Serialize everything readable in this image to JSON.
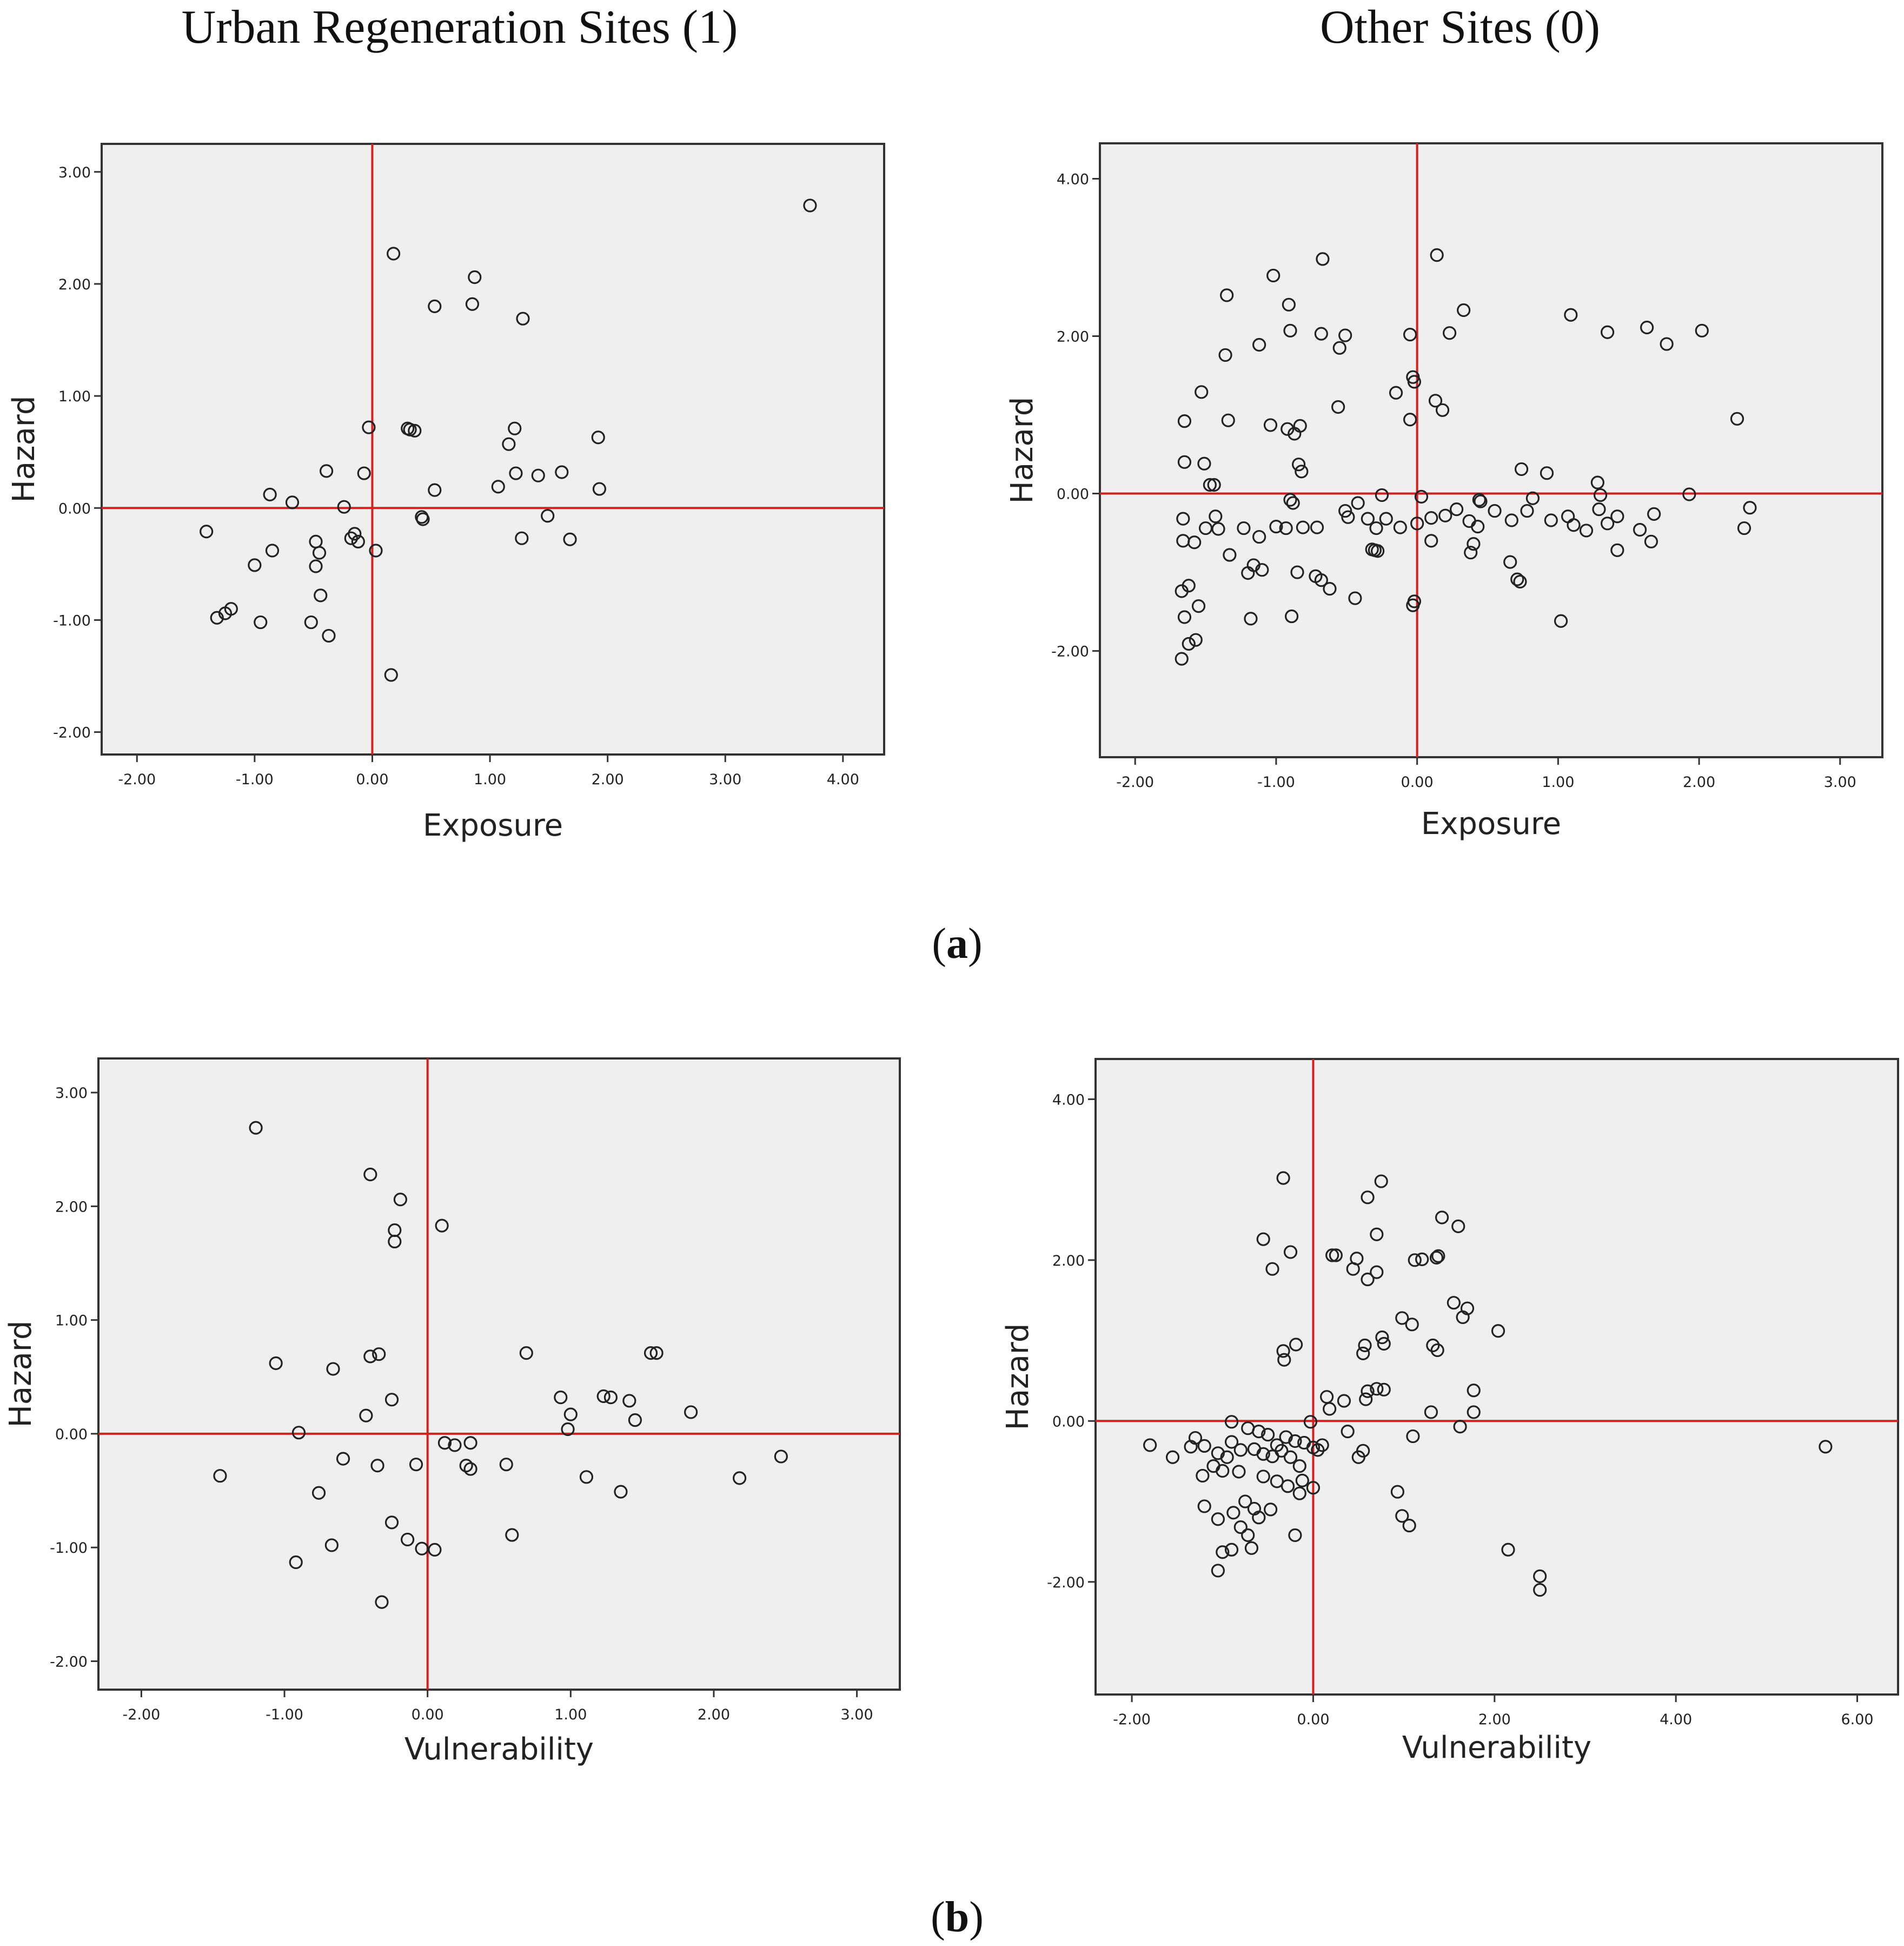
{
  "column_titles": [
    "Urban Regeneration Sites (1)",
    "Other Sites (0)"
  ],
  "panel_labels": [
    "a",
    "b"
  ],
  "colors": {
    "reference_line": "#d61f1f",
    "plot_background": "#efefef",
    "marker": "#222222"
  },
  "chart_data": [
    {
      "id": "a-left",
      "type": "scatter",
      "xlabel": "Exposure",
      "ylabel": "Hazard",
      "xlim": [
        -2.3,
        4.35
      ],
      "ylim": [
        -2.2,
        3.25
      ],
      "xticks": [
        -2,
        -1,
        0,
        1,
        2,
        3,
        4
      ],
      "yticks": [
        -2,
        -1,
        0,
        1,
        2,
        3
      ],
      "reference_lines": {
        "x": 0,
        "y": 0
      },
      "points": [
        [
          3.72,
          2.7
        ],
        [
          0.18,
          2.27
        ],
        [
          0.87,
          2.06
        ],
        [
          0.53,
          1.8
        ],
        [
          0.85,
          1.82
        ],
        [
          1.28,
          1.69
        ],
        [
          -0.03,
          0.72
        ],
        [
          0.3,
          0.71
        ],
        [
          0.32,
          0.7
        ],
        [
          0.36,
          0.69
        ],
        [
          1.21,
          0.71
        ],
        [
          1.16,
          0.57
        ],
        [
          1.92,
          0.63
        ],
        [
          -0.39,
          0.33
        ],
        [
          -0.07,
          0.31
        ],
        [
          1.22,
          0.31
        ],
        [
          1.41,
          0.29
        ],
        [
          1.61,
          0.32
        ],
        [
          0.53,
          0.16
        ],
        [
          1.07,
          0.19
        ],
        [
          1.93,
          0.17
        ],
        [
          -0.87,
          0.12
        ],
        [
          -0.68,
          0.05
        ],
        [
          -0.24,
          0.01
        ],
        [
          0.42,
          -0.08
        ],
        [
          0.43,
          -0.1
        ],
        [
          1.49,
          -0.07
        ],
        [
          -1.41,
          -0.21
        ],
        [
          -0.15,
          -0.23
        ],
        [
          -0.18,
          -0.27
        ],
        [
          -0.12,
          -0.3
        ],
        [
          0.03,
          -0.38
        ],
        [
          1.27,
          -0.27
        ],
        [
          1.68,
          -0.28
        ],
        [
          -0.85,
          -0.38
        ],
        [
          -0.48,
          -0.3
        ],
        [
          -0.45,
          -0.4
        ],
        [
          -1.0,
          -0.51
        ],
        [
          -0.48,
          -0.52
        ],
        [
          -0.44,
          -0.78
        ],
        [
          -1.2,
          -0.9
        ],
        [
          -1.25,
          -0.94
        ],
        [
          -1.32,
          -0.98
        ],
        [
          -0.95,
          -1.02
        ],
        [
          -0.52,
          -1.02
        ],
        [
          -0.37,
          -1.14
        ],
        [
          0.16,
          -1.49
        ]
      ]
    },
    {
      "id": "a-right",
      "type": "scatter",
      "xlabel": "Exposure",
      "ylabel": "Hazard",
      "xlim": [
        -2.25,
        3.3
      ],
      "ylim": [
        -3.35,
        4.45
      ],
      "xticks": [
        -2,
        -1,
        0,
        1,
        2,
        3
      ],
      "yticks": [
        -2,
        0,
        2,
        4
      ],
      "reference_lines": {
        "x": 0,
        "y": 0
      },
      "points": [
        [
          0.14,
          3.03
        ],
        [
          -0.67,
          2.98
        ],
        [
          -1.02,
          2.77
        ],
        [
          -1.35,
          2.52
        ],
        [
          -0.91,
          2.4
        ],
        [
          0.33,
          2.33
        ],
        [
          1.09,
          2.27
        ],
        [
          1.63,
          2.11
        ],
        [
          2.02,
          2.07
        ],
        [
          1.35,
          2.05
        ],
        [
          -0.9,
          2.07
        ],
        [
          -0.68,
          2.03
        ],
        [
          -0.51,
          2.01
        ],
        [
          -0.05,
          2.02
        ],
        [
          0.23,
          2.04
        ],
        [
          1.77,
          1.9
        ],
        [
          -1.12,
          1.89
        ],
        [
          -0.55,
          1.85
        ],
        [
          -1.36,
          1.76
        ],
        [
          -0.03,
          1.48
        ],
        [
          -0.02,
          1.42
        ],
        [
          -1.53,
          1.29
        ],
        [
          -0.15,
          1.28
        ],
        [
          0.13,
          1.18
        ],
        [
          -0.56,
          1.1
        ],
        [
          0.18,
          1.06
        ],
        [
          -1.34,
          0.93
        ],
        [
          -1.65,
          0.92
        ],
        [
          -0.05,
          0.94
        ],
        [
          2.27,
          0.95
        ],
        [
          -1.04,
          0.87
        ],
        [
          -0.92,
          0.82
        ],
        [
          -0.83,
          0.86
        ],
        [
          -0.87,
          0.76
        ],
        [
          -1.65,
          0.4
        ],
        [
          -1.51,
          0.38
        ],
        [
          -0.84,
          0.37
        ],
        [
          -0.82,
          0.28
        ],
        [
          0.74,
          0.31
        ],
        [
          0.92,
          0.26
        ],
        [
          -1.47,
          0.11
        ],
        [
          -1.44,
          0.11
        ],
        [
          1.28,
          0.14
        ],
        [
          -0.9,
          -0.08
        ],
        [
          -0.88,
          -0.12
        ],
        [
          -0.25,
          -0.02
        ],
        [
          0.03,
          -0.04
        ],
        [
          0.44,
          -0.08
        ],
        [
          0.45,
          -0.1
        ],
        [
          0.82,
          -0.06
        ],
        [
          1.3,
          -0.02
        ],
        [
          1.93,
          -0.01
        ],
        [
          -1.43,
          -0.29
        ],
        [
          -1.41,
          -0.45
        ],
        [
          -1.23,
          -0.44
        ],
        [
          -1.12,
          -0.55
        ],
        [
          -1.0,
          -0.42
        ],
        [
          -0.93,
          -0.44
        ],
        [
          -0.81,
          -0.43
        ],
        [
          -0.71,
          -0.43
        ],
        [
          -0.51,
          -0.22
        ],
        [
          -0.49,
          -0.3
        ],
        [
          -0.42,
          -0.12
        ],
        [
          -0.35,
          -0.32
        ],
        [
          -0.29,
          -0.44
        ],
        [
          -0.22,
          -0.32
        ],
        [
          -0.12,
          -0.43
        ],
        [
          0.0,
          -0.38
        ],
        [
          0.1,
          -0.31
        ],
        [
          0.2,
          -0.28
        ],
        [
          0.28,
          -0.2
        ],
        [
          0.37,
          -0.35
        ],
        [
          0.43,
          -0.42
        ],
        [
          0.55,
          -0.22
        ],
        [
          0.67,
          -0.34
        ],
        [
          0.78,
          -0.22
        ],
        [
          0.95,
          -0.34
        ],
        [
          1.07,
          -0.29
        ],
        [
          1.11,
          -0.4
        ],
        [
          1.2,
          -0.47
        ],
        [
          1.29,
          -0.2
        ],
        [
          1.35,
          -0.38
        ],
        [
          1.42,
          -0.29
        ],
        [
          1.58,
          -0.46
        ],
        [
          1.68,
          -0.26
        ],
        [
          2.32,
          -0.44
        ],
        [
          2.36,
          -0.18
        ],
        [
          -1.66,
          -0.32
        ],
        [
          -1.66,
          -0.6
        ],
        [
          -1.58,
          -0.62
        ],
        [
          -1.5,
          -0.44
        ],
        [
          -0.85,
          -1.0
        ],
        [
          -1.16,
          -0.91
        ],
        [
          -1.2,
          -1.01
        ],
        [
          -1.1,
          -0.97
        ],
        [
          -1.33,
          -0.78
        ],
        [
          -0.32,
          -0.71
        ],
        [
          -0.3,
          -0.72
        ],
        [
          -0.28,
          -0.73
        ],
        [
          0.1,
          -0.6
        ],
        [
          0.38,
          -0.75
        ],
        [
          0.4,
          -0.64
        ],
        [
          1.42,
          -0.72
        ],
        [
          1.66,
          -0.61
        ],
        [
          -0.72,
          -1.05
        ],
        [
          -0.68,
          -1.1
        ],
        [
          -0.62,
          -1.21
        ],
        [
          -0.44,
          -1.33
        ],
        [
          -0.02,
          -1.37
        ],
        [
          -0.03,
          -1.42
        ],
        [
          0.66,
          -0.87
        ],
        [
          0.71,
          -1.09
        ],
        [
          0.73,
          -1.12
        ],
        [
          -1.67,
          -1.24
        ],
        [
          -1.62,
          -1.17
        ],
        [
          -1.55,
          -1.43
        ],
        [
          -1.65,
          -1.57
        ],
        [
          -1.62,
          -1.91
        ],
        [
          -1.57,
          -1.86
        ],
        [
          -1.67,
          -2.1
        ],
        [
          -1.18,
          -1.59
        ],
        [
          -0.89,
          -1.56
        ],
        [
          1.02,
          -1.62
        ]
      ]
    },
    {
      "id": "b-left",
      "type": "scatter",
      "xlabel": "Vulnerability",
      "ylabel": "Hazard",
      "xlim": [
        -2.3,
        3.3
      ],
      "ylim": [
        -2.25,
        3.3
      ],
      "xticks": [
        -2,
        -1,
        0,
        1,
        2,
        3
      ],
      "yticks": [
        -2,
        -1,
        0,
        1,
        2,
        3
      ],
      "reference_lines": {
        "x": 0,
        "y": 0
      },
      "points": [
        [
          -1.2,
          2.69
        ],
        [
          -0.4,
          2.28
        ],
        [
          -0.19,
          2.06
        ],
        [
          0.1,
          1.83
        ],
        [
          -0.23,
          1.79
        ],
        [
          -0.23,
          1.69
        ],
        [
          -1.06,
          0.62
        ],
        [
          -0.66,
          0.57
        ],
        [
          -0.4,
          0.68
        ],
        [
          -0.34,
          0.7
        ],
        [
          0.69,
          0.71
        ],
        [
          1.56,
          0.71
        ],
        [
          1.6,
          0.71
        ],
        [
          -0.43,
          0.16
        ],
        [
          -0.25,
          0.3
        ],
        [
          0.93,
          0.32
        ],
        [
          1.0,
          0.17
        ],
        [
          1.23,
          0.33
        ],
        [
          1.28,
          0.32
        ],
        [
          1.41,
          0.29
        ],
        [
          1.45,
          0.12
        ],
        [
          1.84,
          0.19
        ],
        [
          0.98,
          0.04
        ],
        [
          -0.9,
          0.01
        ],
        [
          0.12,
          -0.08
        ],
        [
          0.19,
          -0.1
        ],
        [
          0.3,
          -0.08
        ],
        [
          -0.59,
          -0.22
        ],
        [
          -0.35,
          -0.28
        ],
        [
          -0.08,
          -0.27
        ],
        [
          0.27,
          -0.28
        ],
        [
          0.3,
          -0.31
        ],
        [
          0.55,
          -0.27
        ],
        [
          2.47,
          -0.2
        ],
        [
          -1.45,
          -0.37
        ],
        [
          1.11,
          -0.38
        ],
        [
          2.18,
          -0.39
        ],
        [
          -0.76,
          -0.52
        ],
        [
          1.35,
          -0.51
        ],
        [
          -0.25,
          -0.78
        ],
        [
          -0.14,
          -0.93
        ],
        [
          0.59,
          -0.89
        ],
        [
          -0.67,
          -0.98
        ],
        [
          -0.04,
          -1.01
        ],
        [
          0.05,
          -1.02
        ],
        [
          -0.92,
          -1.13
        ],
        [
          -0.32,
          -1.48
        ]
      ]
    },
    {
      "id": "b-right",
      "type": "scatter",
      "xlabel": "Vulnerability",
      "ylabel": "Hazard",
      "xlim": [
        -2.4,
        6.45
      ],
      "ylim": [
        -3.4,
        4.5
      ],
      "xticks": [
        -2,
        0,
        2,
        4,
        6
      ],
      "yticks": [
        -2,
        0,
        2,
        4
      ],
      "reference_lines": {
        "x": 0,
        "y": 0
      },
      "points": [
        [
          -0.33,
          3.02
        ],
        [
          0.75,
          2.98
        ],
        [
          0.6,
          2.78
        ],
        [
          1.42,
          2.53
        ],
        [
          1.6,
          2.42
        ],
        [
          -0.55,
          2.26
        ],
        [
          0.7,
          2.32
        ],
        [
          -0.25,
          2.1
        ],
        [
          0.21,
          2.06
        ],
        [
          0.25,
          2.06
        ],
        [
          0.48,
          2.02
        ],
        [
          1.12,
          2.0
        ],
        [
          1.2,
          2.01
        ],
        [
          1.36,
          2.03
        ],
        [
          1.38,
          2.05
        ],
        [
          -0.45,
          1.89
        ],
        [
          0.44,
          1.89
        ],
        [
          0.7,
          1.85
        ],
        [
          0.6,
          1.76
        ],
        [
          1.55,
          1.47
        ],
        [
          1.7,
          1.4
        ],
        [
          1.65,
          1.29
        ],
        [
          0.98,
          1.28
        ],
        [
          1.09,
          1.2
        ],
        [
          2.04,
          1.12
        ],
        [
          0.76,
          1.04
        ],
        [
          0.78,
          0.96
        ],
        [
          1.32,
          0.94
        ],
        [
          1.37,
          0.88
        ],
        [
          -0.19,
          0.95
        ],
        [
          0.57,
          0.94
        ],
        [
          0.55,
          0.84
        ],
        [
          -0.33,
          0.87
        ],
        [
          -0.32,
          0.76
        ],
        [
          0.7,
          0.4
        ],
        [
          0.78,
          0.39
        ],
        [
          0.6,
          0.37
        ],
        [
          1.77,
          0.38
        ],
        [
          0.58,
          0.27
        ],
        [
          0.34,
          0.25
        ],
        [
          0.15,
          0.3
        ],
        [
          0.18,
          0.15
        ],
        [
          1.3,
          0.11
        ],
        [
          1.77,
          0.11
        ],
        [
          -0.9,
          -0.01
        ],
        [
          -0.03,
          -0.01
        ],
        [
          0.38,
          -0.13
        ],
        [
          1.62,
          -0.07
        ],
        [
          -1.3,
          -0.21
        ],
        [
          -1.2,
          -0.31
        ],
        [
          -1.05,
          -0.4
        ],
        [
          -0.9,
          -0.26
        ],
        [
          -0.72,
          -0.09
        ],
        [
          -0.6,
          -0.13
        ],
        [
          -0.5,
          -0.17
        ],
        [
          -0.4,
          -0.3
        ],
        [
          -0.3,
          -0.2
        ],
        [
          -0.2,
          -0.25
        ],
        [
          -0.1,
          -0.27
        ],
        [
          0.0,
          -0.33
        ],
        [
          0.1,
          -0.3
        ],
        [
          -1.8,
          -0.3
        ],
        [
          -1.55,
          -0.45
        ],
        [
          -1.35,
          -0.32
        ],
        [
          -1.1,
          -0.56
        ],
        [
          -0.95,
          -0.45
        ],
        [
          -0.8,
          -0.36
        ],
        [
          -0.65,
          -0.35
        ],
        [
          -0.55,
          -0.41
        ],
        [
          -0.45,
          -0.44
        ],
        [
          -0.35,
          -0.37
        ],
        [
          -0.25,
          -0.45
        ],
        [
          -0.15,
          -0.56
        ],
        [
          0.05,
          -0.36
        ],
        [
          0.5,
          -0.45
        ],
        [
          0.55,
          -0.37
        ],
        [
          1.1,
          -0.19
        ],
        [
          -1.22,
          -0.68
        ],
        [
          -1.0,
          -0.62
        ],
        [
          -0.82,
          -0.63
        ],
        [
          -0.55,
          -0.69
        ],
        [
          -0.4,
          -0.75
        ],
        [
          -0.28,
          -0.81
        ],
        [
          -0.12,
          -0.74
        ],
        [
          0.0,
          -0.83
        ],
        [
          -0.15,
          -0.9
        ],
        [
          -1.2,
          -1.06
        ],
        [
          -0.88,
          -1.14
        ],
        [
          -0.65,
          -1.09
        ],
        [
          -0.47,
          -1.1
        ],
        [
          -0.75,
          -1.0
        ],
        [
          -1.05,
          -1.22
        ],
        [
          -0.6,
          -1.2
        ],
        [
          -0.8,
          -1.32
        ],
        [
          -0.72,
          -1.42
        ],
        [
          -0.68,
          -1.58
        ],
        [
          -0.2,
          -1.42
        ],
        [
          -1.0,
          -1.63
        ],
        [
          -0.9,
          -1.6
        ],
        [
          -1.05,
          -1.86
        ],
        [
          0.93,
          -0.88
        ],
        [
          0.98,
          -1.18
        ],
        [
          1.06,
          -1.3
        ],
        [
          2.15,
          -1.6
        ],
        [
          2.5,
          -1.93
        ],
        [
          2.5,
          -2.1
        ],
        [
          5.65,
          -0.32
        ]
      ]
    }
  ]
}
